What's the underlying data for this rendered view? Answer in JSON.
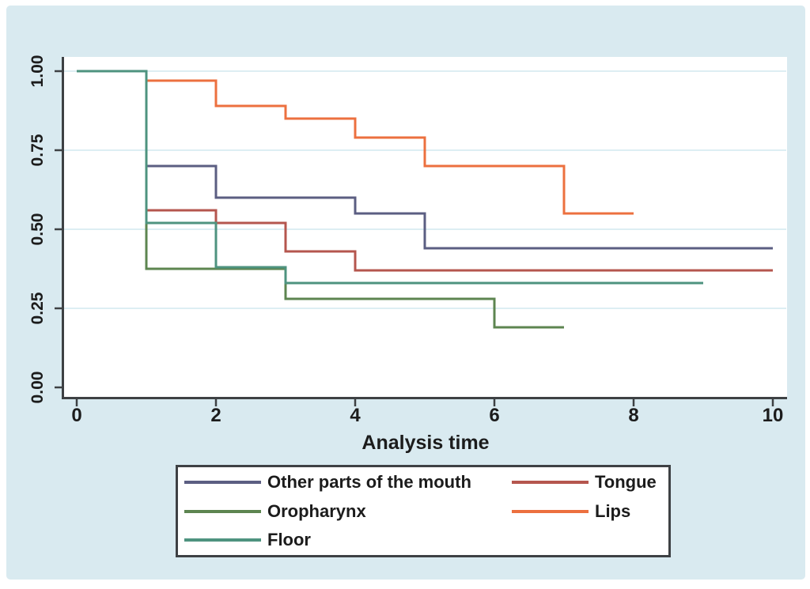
{
  "figure": {
    "background_color": "#d9eaf0",
    "plot_background": "#ffffff",
    "grid_color": "#ddeef3",
    "axis_color": "#3e4144",
    "text_color": "#1c1c1c"
  },
  "chart_data": {
    "type": "line",
    "subtype": "kaplan-meier-step-survival",
    "title": "",
    "xlabel": "Analysis time",
    "ylabel": "",
    "xlim": [
      0,
      10
    ],
    "ylim": [
      0,
      1
    ],
    "x_ticks": [
      "0",
      "2",
      "4",
      "6",
      "8",
      "10"
    ],
    "y_ticks": [
      "0.00",
      "0.25",
      "0.50",
      "0.75",
      "1.00"
    ],
    "grid": "horizontal-only",
    "legend_position": "below-chart",
    "series": [
      {
        "name": "Other parts of the mouth",
        "color": "#5b5e82",
        "points": [
          [
            0,
            1.0
          ],
          [
            1,
            1.0
          ],
          [
            1,
            0.7
          ],
          [
            2,
            0.7
          ],
          [
            2,
            0.6
          ],
          [
            4,
            0.6
          ],
          [
            4,
            0.55
          ],
          [
            5,
            0.55
          ],
          [
            5,
            0.44
          ],
          [
            10,
            0.44
          ]
        ]
      },
      {
        "name": "Tongue",
        "color": "#b5564e",
        "points": [
          [
            0,
            1.0
          ],
          [
            1,
            1.0
          ],
          [
            1,
            0.56
          ],
          [
            2,
            0.56
          ],
          [
            2,
            0.52
          ],
          [
            3,
            0.52
          ],
          [
            3,
            0.43
          ],
          [
            4,
            0.43
          ],
          [
            4,
            0.37
          ],
          [
            10,
            0.37
          ]
        ]
      },
      {
        "name": "Lips",
        "color": "#ec703f",
        "points": [
          [
            0,
            1.0
          ],
          [
            1,
            1.0
          ],
          [
            1,
            0.97
          ],
          [
            2,
            0.97
          ],
          [
            2,
            0.89
          ],
          [
            3,
            0.89
          ],
          [
            3,
            0.85
          ],
          [
            4,
            0.85
          ],
          [
            4,
            0.79
          ],
          [
            5,
            0.79
          ],
          [
            5,
            0.7
          ],
          [
            7,
            0.7
          ],
          [
            7,
            0.55
          ],
          [
            8,
            0.55
          ]
        ]
      },
      {
        "name": "Oropharynx",
        "color": "#5d8550",
        "points": [
          [
            0,
            1.0
          ],
          [
            1,
            1.0
          ],
          [
            1,
            0.375
          ],
          [
            3,
            0.375
          ],
          [
            3,
            0.28
          ],
          [
            6,
            0.28
          ],
          [
            6,
            0.19
          ],
          [
            7,
            0.19
          ]
        ]
      },
      {
        "name": "Floor",
        "color": "#4e937f",
        "points": [
          [
            0,
            1.0
          ],
          [
            1,
            1.0
          ],
          [
            1,
            0.52
          ],
          [
            2,
            0.52
          ],
          [
            2,
            0.38
          ],
          [
            3,
            0.38
          ],
          [
            3,
            0.33
          ],
          [
            9,
            0.33
          ]
        ]
      }
    ]
  }
}
